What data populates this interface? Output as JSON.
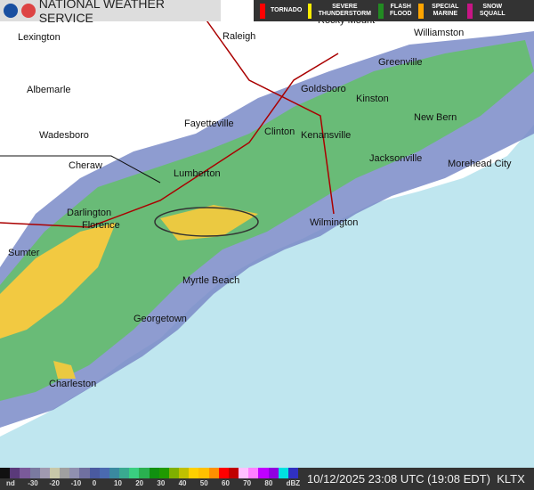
{
  "header": {
    "title": "NATIONAL WEATHER SERVICE",
    "warnings": [
      {
        "label": "TORNADO",
        "color": "#ff0000"
      },
      {
        "label": "SEVERE THUNDERSTORM",
        "color": "#ffee00"
      },
      {
        "label": "FLASH FLOOD",
        "color": "#228b22"
      },
      {
        "label": "SPECIAL MARINE",
        "color": "#ffa500"
      },
      {
        "label": "SNOW SQUALL",
        "color": "#c71585"
      }
    ]
  },
  "cities": [
    "Lexington",
    "Raleigh",
    "Rocky Mount",
    "Williamston",
    "Albemarle",
    "Greenville",
    "Goldsboro",
    "Kinston",
    "Fayetteville",
    "New Bern",
    "Wadesboro",
    "Clinton",
    "Kenansville",
    "Jacksonville",
    "Cheraw",
    "Lumberton",
    "Morehead City",
    "Darlington",
    "Florence",
    "Wilmington",
    "Sumter",
    "Myrtle Beach",
    "Georgetown",
    "Charleston"
  ],
  "legend": {
    "ticks": [
      "nd",
      "-30",
      "-20",
      "-10",
      "0",
      "10",
      "20",
      "30",
      "40",
      "50",
      "60",
      "70",
      "80",
      "dBZ"
    ],
    "colors": [
      "#111",
      "#5a3a7a",
      "#7a5a9a",
      "#7a7aa0",
      "#a09ab0",
      "#c8c8a8",
      "#a0a0a0",
      "#9090b0",
      "#7070a0",
      "#4a5aa0",
      "#4a6ab0",
      "#3a8aa0",
      "#3aaa90",
      "#3ad080",
      "#2ab050",
      "#109010",
      "#209a00",
      "#80b000",
      "#c0c000",
      "#ffd000",
      "#ffc000",
      "#ff9000",
      "#ff0000",
      "#c00000",
      "#ffc0ff",
      "#ff80ff",
      "#c000ff",
      "#9000e0",
      "#00e0e0",
      "#3030c0"
    ]
  },
  "footer": {
    "timestamp": "10/12/2025 23:08 UTC (19:08 EDT)",
    "station": "KLTX"
  }
}
